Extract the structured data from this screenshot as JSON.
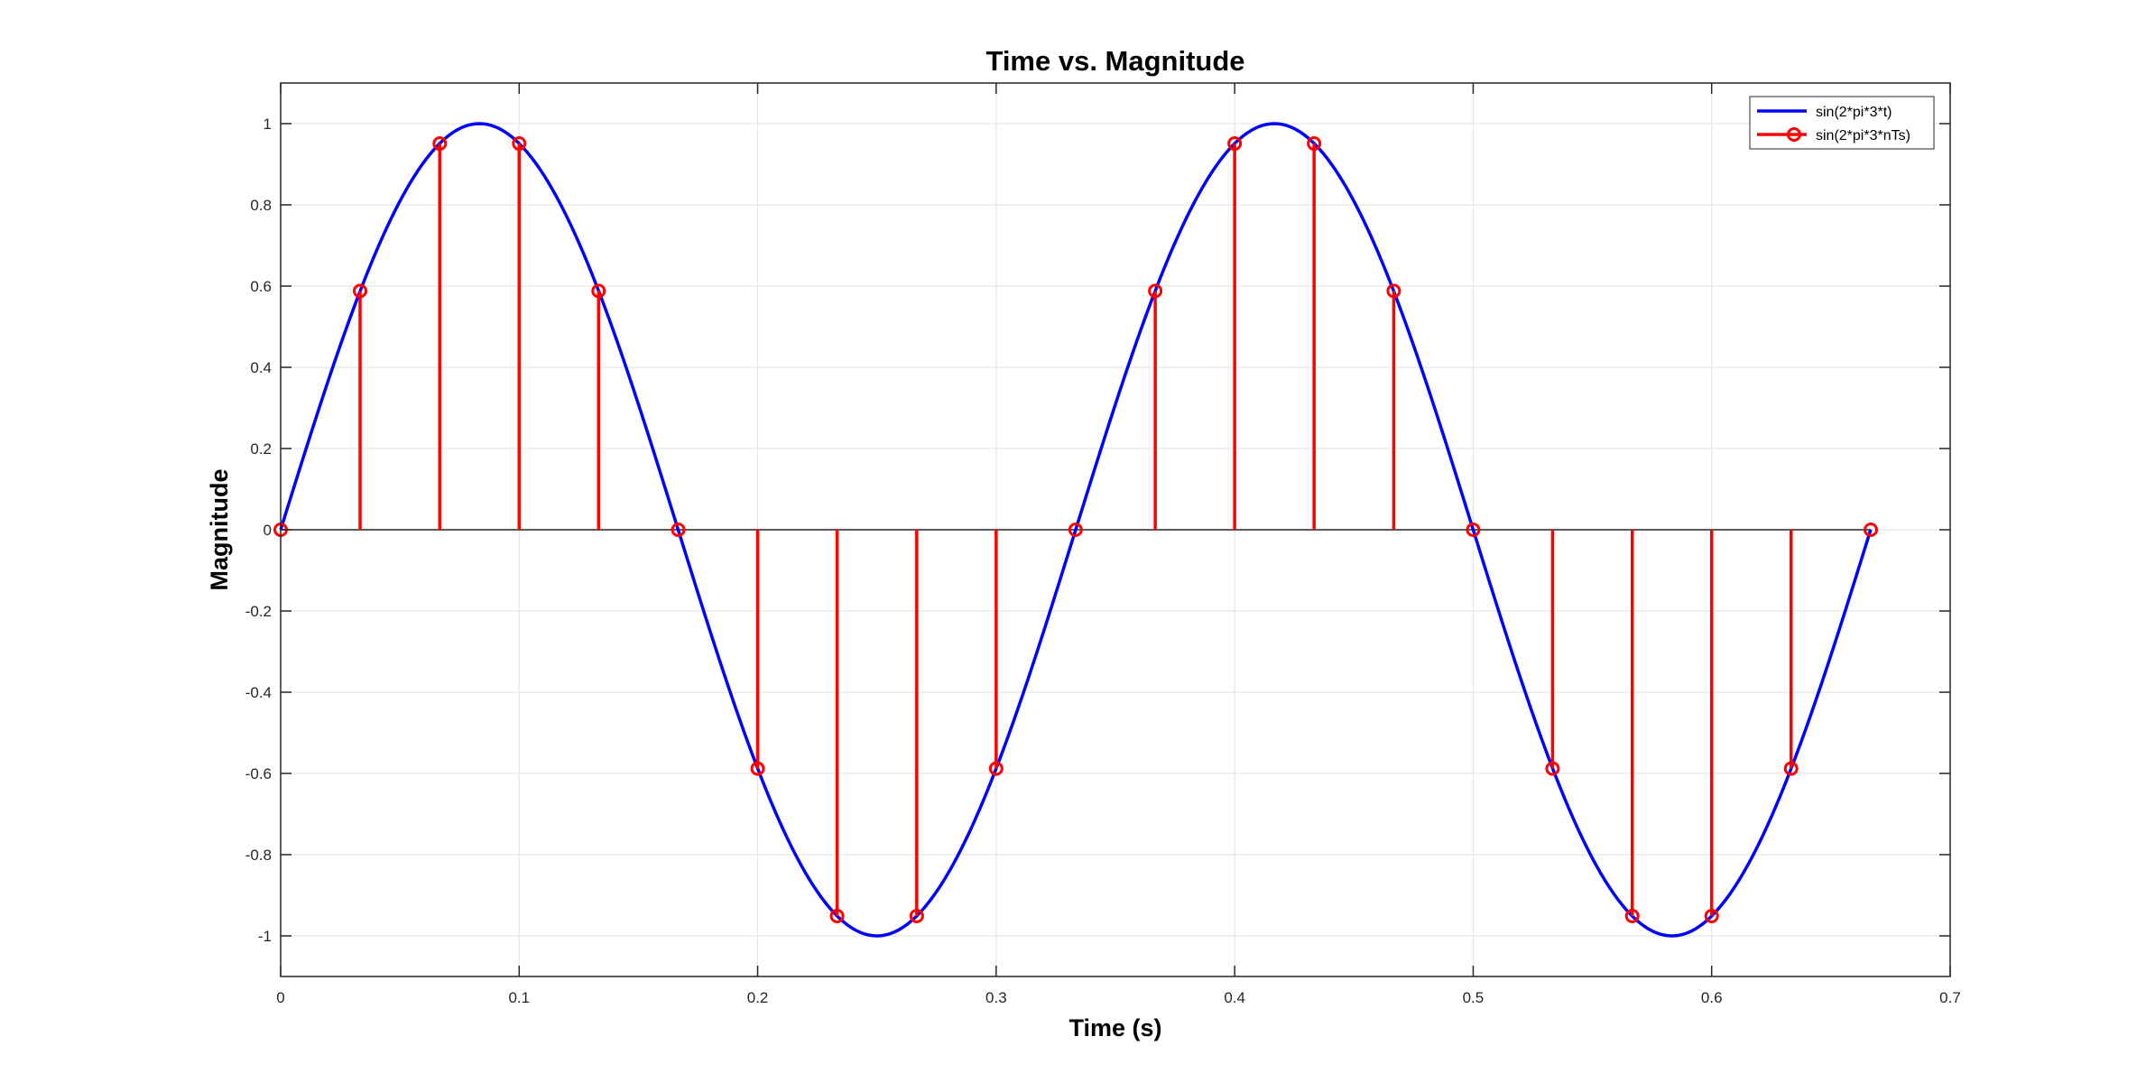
{
  "chart_data": {
    "type": "line",
    "title": "Time vs. Magnitude",
    "xlabel": "Time (s)",
    "ylabel": "Magnitude",
    "xlim": [
      0,
      0.7
    ],
    "ylim": [
      -1.1,
      1.1
    ],
    "xticks": [
      0,
      0.1,
      0.2,
      0.3,
      0.4,
      0.5,
      0.6,
      0.7
    ],
    "xtick_labels": [
      "0",
      "0.1",
      "0.2",
      "0.3",
      "0.4",
      "0.5",
      "0.6",
      "0.7"
    ],
    "yticks": [
      -1,
      -0.8,
      -0.6,
      -0.4,
      -0.2,
      0,
      0.2,
      0.4,
      0.6,
      0.8,
      1
    ],
    "ytick_labels": [
      "-1",
      "-0.8",
      "-0.6",
      "-0.4",
      "-0.2",
      "0",
      "0.2",
      "0.4",
      "0.6",
      "0.8",
      "1"
    ],
    "grid": true,
    "legend_position": "top-right",
    "series": [
      {
        "name": "sin(2*pi*3*t)",
        "style": "line",
        "color": "#0000ff",
        "function": "sin(2*pi*3*t)",
        "t_range": [
          0,
          0.6667
        ]
      },
      {
        "name": "sin(2*pi*3*nTs)",
        "style": "stem",
        "color": "#ff0000",
        "x": [
          0,
          0.0333,
          0.0667,
          0.1,
          0.1333,
          0.1667,
          0.2,
          0.2333,
          0.2667,
          0.3,
          0.3333,
          0.3667,
          0.4,
          0.4333,
          0.4667,
          0.5,
          0.5333,
          0.5667,
          0.6,
          0.6333,
          0.6667
        ],
        "y": [
          0,
          0.588,
          0.951,
          0.951,
          0.588,
          0,
          -0.588,
          -0.951,
          -0.951,
          -0.588,
          0,
          0.588,
          0.951,
          0.951,
          0.588,
          0,
          -0.588,
          -0.951,
          -0.951,
          -0.588,
          0
        ]
      }
    ]
  }
}
